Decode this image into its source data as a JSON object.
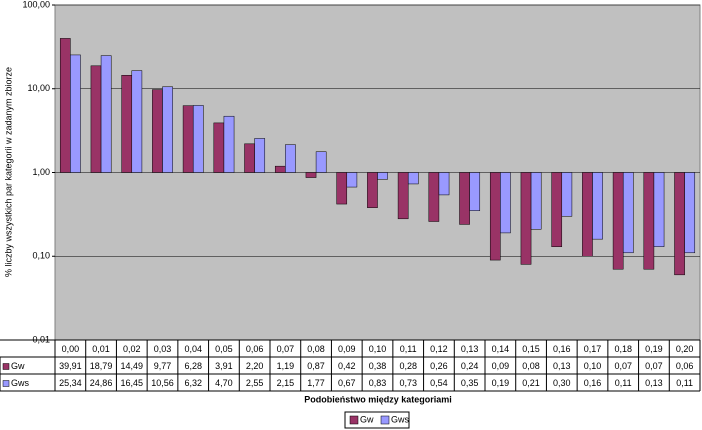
{
  "chart_data": {
    "type": "bar",
    "y_label": "% liczby wszystkich par kategorii w zadanym zbiorze",
    "x_label": "Podobieństwo między kategoriami",
    "categories": [
      "0,00",
      "0,01",
      "0,02",
      "0,03",
      "0,04",
      "0,05",
      "0,06",
      "0,07",
      "0,08",
      "0,09",
      "0,10",
      "0,11",
      "0,12",
      "0,13",
      "0,14",
      "0,15",
      "0,16",
      "0,17",
      "0,18",
      "0,19",
      "0,20"
    ],
    "series": [
      {
        "name": "Gw",
        "color": "#993366",
        "values": [
          39.91,
          18.79,
          14.49,
          9.77,
          6.28,
          3.91,
          2.2,
          1.19,
          0.87,
          0.42,
          0.38,
          0.28,
          0.26,
          0.24,
          0.09,
          0.08,
          0.13,
          0.1,
          0.07,
          0.07,
          0.06
        ],
        "value_labels": [
          "39,91",
          "18,79",
          "14,49",
          "9,77",
          "6,28",
          "3,91",
          "2,20",
          "1,19",
          "0,87",
          "0,42",
          "0,38",
          "0,28",
          "0,26",
          "0,24",
          "0,09",
          "0,08",
          "0,13",
          "0,10",
          "0,07",
          "0,07",
          "0,06"
        ]
      },
      {
        "name": "Gws",
        "color": "#9999ff",
        "values": [
          25.34,
          24.86,
          16.45,
          10.56,
          6.32,
          4.7,
          2.55,
          2.15,
          1.77,
          0.67,
          0.83,
          0.73,
          0.54,
          0.35,
          0.19,
          0.21,
          0.3,
          0.16,
          0.11,
          0.13,
          0.11
        ],
        "value_labels": [
          "25,34",
          "24,86",
          "16,45",
          "10,56",
          "6,32",
          "4,70",
          "2,55",
          "2,15",
          "1,77",
          "0,67",
          "0,83",
          "0,73",
          "0,54",
          "0,35",
          "0,19",
          "0,21",
          "0,30",
          "0,16",
          "0,11",
          "0,13",
          "0,11"
        ]
      }
    ],
    "ylim": [
      0.01,
      100
    ],
    "yticks": [
      {
        "value": 0.01,
        "label": "0,01"
      },
      {
        "value": 0.1,
        "label": "0,10"
      },
      {
        "value": 1,
        "label": "1,00"
      },
      {
        "value": 10,
        "label": "10,00"
      },
      {
        "value": 100,
        "label": "100,00"
      }
    ],
    "log_scale": true,
    "grid": true,
    "legend": "bottom"
  }
}
